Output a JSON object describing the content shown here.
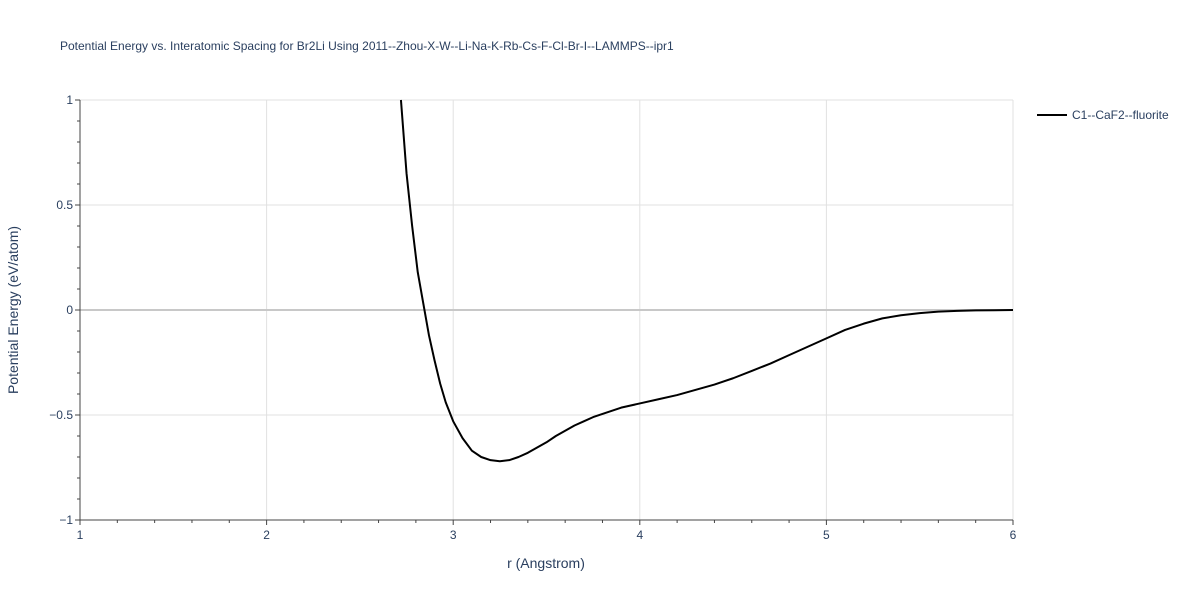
{
  "chart_data": {
    "type": "line",
    "title": "Potential Energy vs. Interatomic Spacing for Br2Li Using 2011--Zhou-X-W--Li-Na-K-Rb-Cs-F-Cl-Br-I--LAMMPS--ipr1",
    "xlabel": "r (Angstrom)",
    "ylabel": "Potential Energy (eV/atom)",
    "xlim": [
      1,
      6
    ],
    "ylim": [
      -1,
      1
    ],
    "x_ticks": [
      1,
      2,
      3,
      4,
      5,
      6
    ],
    "x_tick_labels": [
      "1",
      "2",
      "3",
      "4",
      "5",
      "6"
    ],
    "y_ticks": [
      -1,
      -0.5,
      0,
      0.5,
      1
    ],
    "y_tick_labels": [
      "−1",
      "−0.5",
      "0",
      "0.5",
      "1"
    ],
    "grid": true,
    "legend_position": "top-right",
    "series": [
      {
        "name": "C1--CaF2--fluorite",
        "color": "#000000",
        "x": [
          2.72,
          2.75,
          2.78,
          2.81,
          2.84,
          2.87,
          2.9,
          2.93,
          2.96,
          3.0,
          3.05,
          3.1,
          3.15,
          3.2,
          3.25,
          3.3,
          3.35,
          3.4,
          3.45,
          3.5,
          3.55,
          3.6,
          3.65,
          3.7,
          3.75,
          3.8,
          3.85,
          3.9,
          4.0,
          4.1,
          4.2,
          4.3,
          4.4,
          4.5,
          4.6,
          4.7,
          4.8,
          4.9,
          5.0,
          5.1,
          5.2,
          5.3,
          5.4,
          5.5,
          5.6,
          5.7,
          5.8,
          5.9,
          6.0
        ],
        "y": [
          1.0,
          0.65,
          0.4,
          0.18,
          0.03,
          -0.12,
          -0.24,
          -0.35,
          -0.44,
          -0.53,
          -0.61,
          -0.67,
          -0.7,
          -0.715,
          -0.72,
          -0.715,
          -0.7,
          -0.68,
          -0.655,
          -0.63,
          -0.6,
          -0.575,
          -0.55,
          -0.53,
          -0.51,
          -0.495,
          -0.48,
          -0.465,
          -0.445,
          -0.425,
          -0.405,
          -0.38,
          -0.355,
          -0.325,
          -0.29,
          -0.255,
          -0.215,
          -0.175,
          -0.135,
          -0.095,
          -0.065,
          -0.04,
          -0.025,
          -0.015,
          -0.008,
          -0.004,
          -0.002,
          -0.001,
          0.0
        ]
      }
    ]
  }
}
